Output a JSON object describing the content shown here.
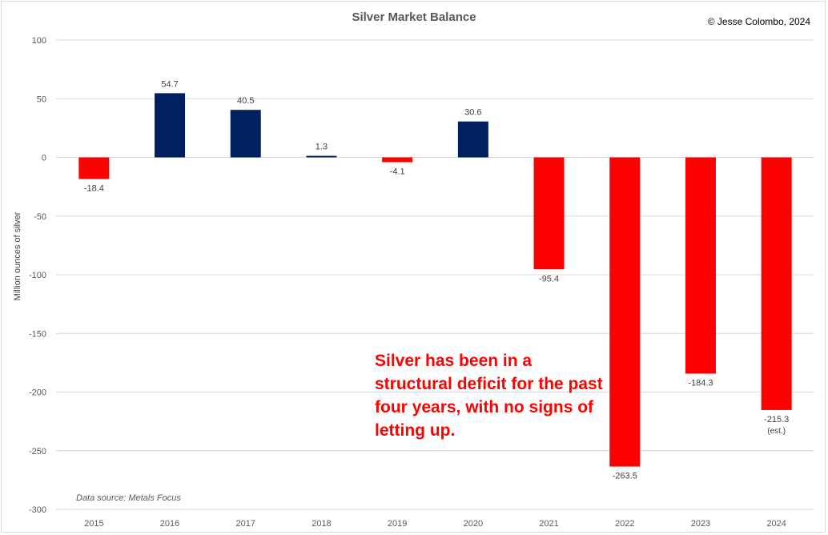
{
  "chart_data": {
    "type": "bar",
    "title": "Silver Market Balance",
    "copyright": "© Jesse Colombo, 2024",
    "ylabel": "Million ounces of silver",
    "xlabel": "",
    "source": "Data source: Metals Focus",
    "annotation": "Silver has been in a structural deficit for the past four years, with no signs of letting up.",
    "categories": [
      "2015",
      "2016",
      "2017",
      "2018",
      "2019",
      "2020",
      "2021",
      "2022",
      "2023",
      "2024"
    ],
    "values": [
      -18.4,
      54.7,
      40.5,
      1.3,
      -4.1,
      30.6,
      -95.4,
      -263.5,
      -184.3,
      -215.3
    ],
    "data_labels": [
      "-18.4",
      "54.7",
      "40.5",
      "1.3",
      "-4.1",
      "30.6",
      "-95.4",
      "-263.5",
      "-184.3",
      "-215.3"
    ],
    "data_label_notes": {
      "2024": "(est.)"
    },
    "ylim": [
      -300,
      100
    ],
    "yticks": [
      100,
      50,
      0,
      -50,
      -100,
      -150,
      -200,
      -250,
      -300
    ],
    "grid": true,
    "legend": "none",
    "colors": {
      "surplus": "#002060",
      "deficit": "#ff0000",
      "grid": "#d9d9d9"
    }
  }
}
